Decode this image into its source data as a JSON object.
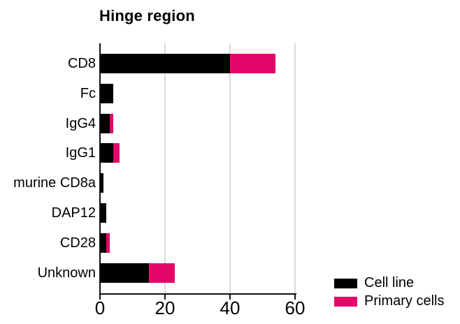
{
  "chart_data": {
    "type": "bar",
    "orientation": "horizontal",
    "stacked": true,
    "title": "Hinge region",
    "categories": [
      "CD8",
      "Fc",
      "IgG4",
      "IgG1",
      "murine CD8a",
      "DAP12",
      "CD28",
      "Unknown"
    ],
    "series": [
      {
        "name": "Cell line",
        "color": "#000000",
        "values": [
          40,
          4,
          3,
          4,
          1,
          2,
          2,
          15
        ]
      },
      {
        "name": "Primary cells",
        "color": "#E5066A",
        "values": [
          14,
          0,
          1,
          2,
          0,
          0,
          1,
          8
        ]
      }
    ],
    "xlim": [
      0,
      60
    ],
    "xticks": [
      0,
      20,
      40,
      60
    ],
    "xtick_labels": [
      "0",
      "20",
      "40",
      "60"
    ],
    "grid": "vertical",
    "gridline_color": "#d9d9d9",
    "axis_color": "#111111",
    "legend_position": "bottom-right"
  }
}
